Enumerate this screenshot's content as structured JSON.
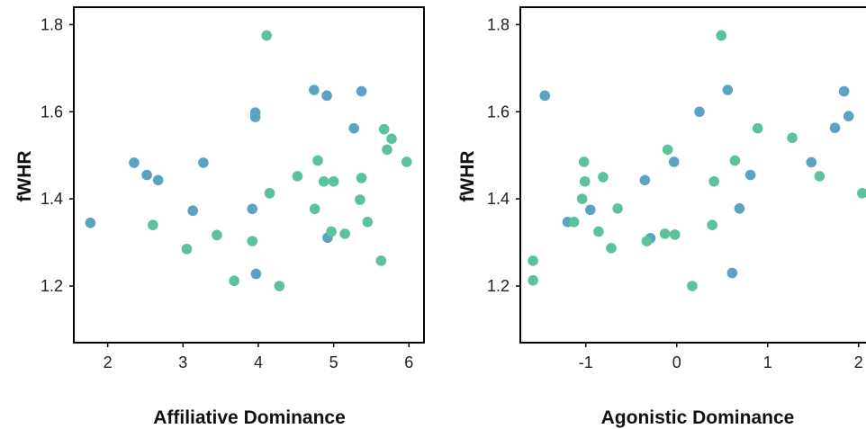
{
  "chart_data": [
    {
      "type": "scatter",
      "xlabel": "Affiliative Dominance",
      "ylabel": "fWHR",
      "xlim": [
        1.55,
        6.2
      ],
      "ylim": [
        1.07,
        1.84
      ],
      "xticks": [
        "2",
        "3",
        "4",
        "5",
        "6"
      ],
      "xtick_values": [
        2,
        3,
        4,
        5,
        6
      ],
      "yticks": [
        "1.2",
        "1.4",
        "1.6",
        "1.8"
      ],
      "ytick_values": [
        1.2,
        1.4,
        1.6,
        1.8
      ],
      "grid": false,
      "legend": "none",
      "colors": {
        "blue": "#5ba3c4",
        "green": "#5cc29b"
      },
      "points": [
        {
          "x": 1.77,
          "y": 1.345,
          "c": "blue"
        },
        {
          "x": 2.35,
          "y": 1.483,
          "c": "blue"
        },
        {
          "x": 2.52,
          "y": 1.455,
          "c": "blue"
        },
        {
          "x": 2.67,
          "y": 1.443,
          "c": "blue"
        },
        {
          "x": 3.13,
          "y": 1.373,
          "c": "blue"
        },
        {
          "x": 3.27,
          "y": 1.483,
          "c": "blue"
        },
        {
          "x": 3.92,
          "y": 1.377,
          "c": "blue"
        },
        {
          "x": 3.96,
          "y": 1.598,
          "c": "blue"
        },
        {
          "x": 3.96,
          "y": 1.588,
          "c": "blue"
        },
        {
          "x": 3.97,
          "y": 1.228,
          "c": "blue"
        },
        {
          "x": 4.74,
          "y": 1.65,
          "c": "blue"
        },
        {
          "x": 4.91,
          "y": 1.637,
          "c": "blue"
        },
        {
          "x": 4.92,
          "y": 1.311,
          "c": "blue"
        },
        {
          "x": 5.27,
          "y": 1.562,
          "c": "blue"
        },
        {
          "x": 5.37,
          "y": 1.647,
          "c": "blue"
        },
        {
          "x": 2.6,
          "y": 1.34,
          "c": "green"
        },
        {
          "x": 3.05,
          "y": 1.285,
          "c": "green"
        },
        {
          "x": 3.45,
          "y": 1.317,
          "c": "green"
        },
        {
          "x": 3.68,
          "y": 1.212,
          "c": "green"
        },
        {
          "x": 3.92,
          "y": 1.303,
          "c": "green"
        },
        {
          "x": 4.11,
          "y": 1.775,
          "c": "green"
        },
        {
          "x": 4.15,
          "y": 1.413,
          "c": "green"
        },
        {
          "x": 4.28,
          "y": 1.2,
          "c": "green"
        },
        {
          "x": 4.52,
          "y": 1.452,
          "c": "green"
        },
        {
          "x": 4.75,
          "y": 1.377,
          "c": "green"
        },
        {
          "x": 4.79,
          "y": 1.488,
          "c": "green"
        },
        {
          "x": 4.87,
          "y": 1.44,
          "c": "green"
        },
        {
          "x": 4.97,
          "y": 1.325,
          "c": "green"
        },
        {
          "x": 5.0,
          "y": 1.44,
          "c": "green"
        },
        {
          "x": 5.15,
          "y": 1.32,
          "c": "green"
        },
        {
          "x": 5.35,
          "y": 1.398,
          "c": "green"
        },
        {
          "x": 5.37,
          "y": 1.448,
          "c": "green"
        },
        {
          "x": 5.45,
          "y": 1.347,
          "c": "green"
        },
        {
          "x": 5.63,
          "y": 1.258,
          "c": "green"
        },
        {
          "x": 5.67,
          "y": 1.56,
          "c": "green"
        },
        {
          "x": 5.71,
          "y": 1.513,
          "c": "green"
        },
        {
          "x": 5.77,
          "y": 1.538,
          "c": "green"
        },
        {
          "x": 5.97,
          "y": 1.485,
          "c": "green"
        }
      ]
    },
    {
      "type": "scatter",
      "xlabel": "Agonistic Dominance",
      "ylabel": "fWHR",
      "xlim": [
        -1.72,
        2.18
      ],
      "ylim": [
        1.07,
        1.84
      ],
      "xticks": [
        "-1",
        "0",
        "1",
        "2"
      ],
      "xtick_values": [
        -1,
        0,
        1,
        2
      ],
      "yticks": [
        "1.2",
        "1.4",
        "1.6",
        "1.8"
      ],
      "ytick_values": [
        1.2,
        1.4,
        1.6,
        1.8
      ],
      "grid": false,
      "legend": "none",
      "colors": {
        "blue": "#5ba3c4",
        "green": "#5cc29b"
      },
      "points": [
        {
          "x": -1.45,
          "y": 1.637,
          "c": "blue"
        },
        {
          "x": -1.2,
          "y": 1.347,
          "c": "blue"
        },
        {
          "x": -0.95,
          "y": 1.375,
          "c": "blue"
        },
        {
          "x": -0.35,
          "y": 1.443,
          "c": "blue"
        },
        {
          "x": -0.29,
          "y": 1.31,
          "c": "blue"
        },
        {
          "x": -0.03,
          "y": 1.485,
          "c": "blue"
        },
        {
          "x": 0.25,
          "y": 1.6,
          "c": "blue"
        },
        {
          "x": 0.56,
          "y": 1.65,
          "c": "blue"
        },
        {
          "x": 0.61,
          "y": 1.23,
          "c": "blue"
        },
        {
          "x": 0.69,
          "y": 1.378,
          "c": "blue"
        },
        {
          "x": 0.81,
          "y": 1.455,
          "c": "blue"
        },
        {
          "x": 1.48,
          "y": 1.484,
          "c": "blue"
        },
        {
          "x": 1.74,
          "y": 1.563,
          "c": "blue"
        },
        {
          "x": 1.84,
          "y": 1.647,
          "c": "blue"
        },
        {
          "x": 1.89,
          "y": 1.59,
          "c": "blue"
        },
        {
          "x": -1.58,
          "y": 1.258,
          "c": "green"
        },
        {
          "x": -1.58,
          "y": 1.213,
          "c": "green"
        },
        {
          "x": -1.13,
          "y": 1.347,
          "c": "green"
        },
        {
          "x": -1.04,
          "y": 1.4,
          "c": "green"
        },
        {
          "x": -1.02,
          "y": 1.485,
          "c": "green"
        },
        {
          "x": -1.01,
          "y": 1.44,
          "c": "green"
        },
        {
          "x": -0.86,
          "y": 1.325,
          "c": "green"
        },
        {
          "x": -0.81,
          "y": 1.45,
          "c": "green"
        },
        {
          "x": -0.72,
          "y": 1.287,
          "c": "green"
        },
        {
          "x": -0.65,
          "y": 1.378,
          "c": "green"
        },
        {
          "x": -0.33,
          "y": 1.303,
          "c": "green"
        },
        {
          "x": -0.13,
          "y": 1.32,
          "c": "green"
        },
        {
          "x": -0.1,
          "y": 1.513,
          "c": "green"
        },
        {
          "x": -0.02,
          "y": 1.318,
          "c": "green"
        },
        {
          "x": 0.17,
          "y": 1.2,
          "c": "green"
        },
        {
          "x": 0.39,
          "y": 1.34,
          "c": "green"
        },
        {
          "x": 0.41,
          "y": 1.44,
          "c": "green"
        },
        {
          "x": 0.49,
          "y": 1.775,
          "c": "green"
        },
        {
          "x": 0.64,
          "y": 1.488,
          "c": "green"
        },
        {
          "x": 0.89,
          "y": 1.562,
          "c": "green"
        },
        {
          "x": 1.27,
          "y": 1.54,
          "c": "green"
        },
        {
          "x": 1.57,
          "y": 1.452,
          "c": "green"
        },
        {
          "x": 2.04,
          "y": 1.413,
          "c": "green"
        }
      ]
    }
  ]
}
